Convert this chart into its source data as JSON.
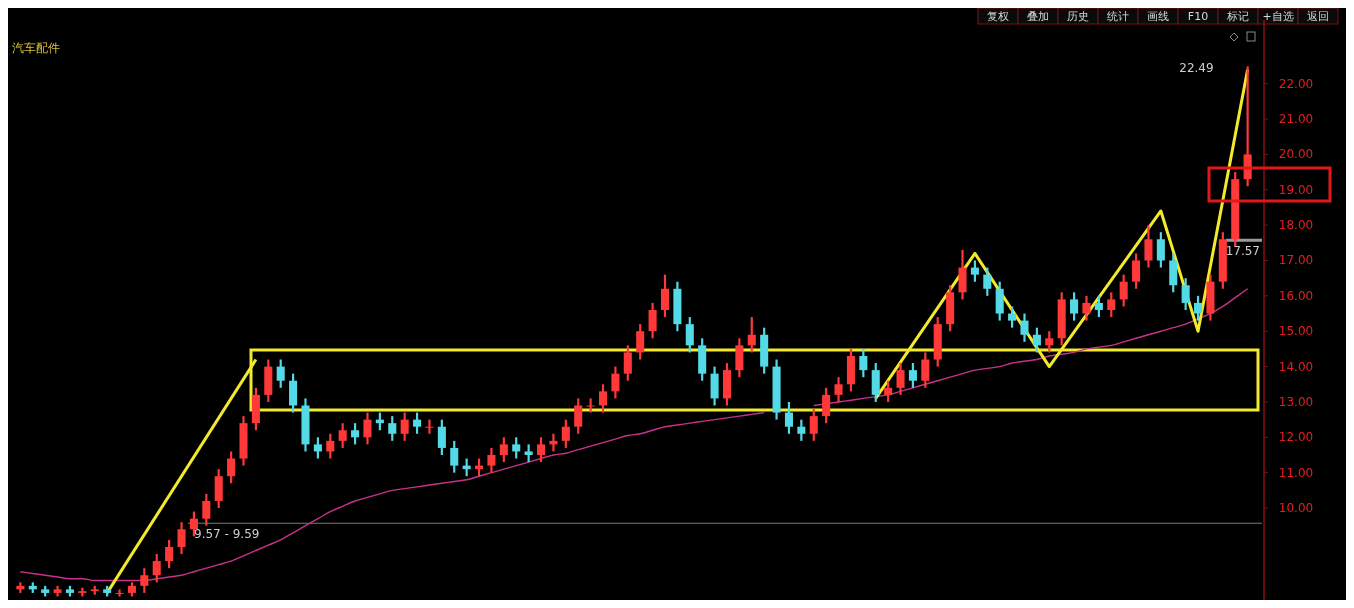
{
  "chart_data": {
    "type": "candlestick",
    "title": "汽车配件",
    "categories": [
      null,
      null,
      null,
      null,
      null,
      null,
      null,
      null,
      null,
      null,
      null,
      null,
      null,
      null,
      null,
      null,
      null,
      null,
      null,
      null,
      null,
      null,
      null,
      null,
      null,
      null,
      null,
      null,
      null,
      null,
      null,
      null,
      null,
      null,
      null,
      null,
      null,
      null,
      null,
      null,
      null,
      null,
      null,
      null,
      null,
      null,
      null,
      null,
      null,
      null,
      null,
      null,
      null,
      null,
      null,
      null,
      null,
      null,
      null,
      null,
      null,
      null,
      null,
      null,
      null,
      null,
      null,
      null,
      null,
      null,
      null,
      null,
      null,
      null,
      null,
      null,
      null,
      null,
      null,
      null,
      null,
      null,
      null,
      null,
      null,
      null,
      null,
      null,
      null,
      null,
      null,
      null,
      null,
      null,
      null,
      null,
      null,
      null,
      null,
      null
    ],
    "ohlc": [
      [
        7.7,
        7.9,
        7.6,
        7.8
      ],
      [
        7.8,
        7.9,
        7.6,
        7.7
      ],
      [
        7.7,
        7.8,
        7.5,
        7.6
      ],
      [
        7.6,
        7.8,
        7.5,
        7.7
      ],
      [
        7.7,
        7.8,
        7.5,
        7.6
      ],
      [
        7.6,
        7.75,
        7.5,
        7.65
      ],
      [
        7.65,
        7.8,
        7.55,
        7.7
      ],
      [
        7.7,
        7.8,
        7.5,
        7.6
      ],
      [
        7.6,
        7.7,
        7.5,
        7.6
      ],
      [
        7.6,
        7.9,
        7.5,
        7.8
      ],
      [
        7.8,
        8.3,
        7.6,
        8.1
      ],
      [
        8.1,
        8.7,
        7.9,
        8.5
      ],
      [
        8.5,
        9.1,
        8.3,
        8.9
      ],
      [
        8.9,
        9.6,
        8.7,
        9.4
      ],
      [
        9.4,
        9.9,
        9.2,
        9.7
      ],
      [
        9.7,
        10.4,
        9.5,
        10.2
      ],
      [
        10.2,
        11.1,
        10.0,
        10.9
      ],
      [
        10.9,
        11.6,
        10.7,
        11.4
      ],
      [
        11.4,
        12.6,
        11.2,
        12.4
      ],
      [
        12.4,
        13.4,
        12.2,
        13.2
      ],
      [
        13.2,
        14.2,
        13.0,
        14.0
      ],
      [
        14.0,
        14.2,
        13.4,
        13.6
      ],
      [
        13.6,
        13.8,
        12.7,
        12.9
      ],
      [
        12.9,
        13.1,
        11.6,
        11.8
      ],
      [
        11.8,
        12.0,
        11.4,
        11.6
      ],
      [
        11.6,
        12.1,
        11.4,
        11.9
      ],
      [
        11.9,
        12.4,
        11.7,
        12.2
      ],
      [
        12.2,
        12.4,
        11.8,
        12.0
      ],
      [
        12.0,
        12.7,
        11.8,
        12.5
      ],
      [
        12.5,
        12.7,
        12.2,
        12.4
      ],
      [
        12.4,
        12.6,
        11.9,
        12.1
      ],
      [
        12.1,
        12.7,
        11.9,
        12.5
      ],
      [
        12.5,
        12.7,
        12.1,
        12.3
      ],
      [
        12.3,
        12.5,
        12.1,
        12.3
      ],
      [
        12.3,
        12.5,
        11.5,
        11.7
      ],
      [
        11.7,
        11.9,
        11.0,
        11.2
      ],
      [
        11.2,
        11.4,
        10.9,
        11.1
      ],
      [
        11.1,
        11.4,
        10.9,
        11.2
      ],
      [
        11.2,
        11.7,
        11.0,
        11.5
      ],
      [
        11.5,
        12.0,
        11.3,
        11.8
      ],
      [
        11.8,
        12.0,
        11.4,
        11.6
      ],
      [
        11.6,
        11.8,
        11.3,
        11.5
      ],
      [
        11.5,
        12.0,
        11.3,
        11.8
      ],
      [
        11.8,
        12.1,
        11.6,
        11.9
      ],
      [
        11.9,
        12.5,
        11.7,
        12.3
      ],
      [
        12.3,
        13.1,
        12.1,
        12.9
      ],
      [
        12.9,
        13.1,
        12.7,
        12.9
      ],
      [
        12.9,
        13.5,
        12.7,
        13.3
      ],
      [
        13.3,
        14.0,
        13.1,
        13.8
      ],
      [
        13.8,
        14.6,
        13.6,
        14.4
      ],
      [
        14.4,
        15.2,
        14.2,
        15.0
      ],
      [
        15.0,
        15.8,
        14.8,
        15.6
      ],
      [
        15.6,
        16.6,
        15.4,
        16.2
      ],
      [
        16.2,
        16.4,
        15.0,
        15.2
      ],
      [
        15.2,
        15.4,
        14.4,
        14.6
      ],
      [
        14.6,
        14.8,
        13.6,
        13.8
      ],
      [
        13.8,
        14.0,
        12.9,
        13.1
      ],
      [
        13.1,
        14.1,
        12.9,
        13.9
      ],
      [
        13.9,
        14.8,
        13.7,
        14.6
      ],
      [
        14.6,
        15.4,
        14.4,
        14.9
      ],
      [
        14.9,
        15.1,
        13.8,
        14.0
      ],
      [
        14.0,
        14.2,
        12.5,
        12.7
      ],
      [
        12.7,
        13.0,
        12.1,
        12.3
      ],
      [
        12.3,
        12.5,
        11.9,
        12.1
      ],
      [
        12.1,
        12.8,
        11.9,
        12.6
      ],
      [
        12.6,
        13.4,
        12.4,
        13.2
      ],
      [
        13.2,
        13.7,
        13.0,
        13.5
      ],
      [
        13.5,
        14.5,
        13.3,
        14.3
      ],
      [
        14.3,
        14.5,
        13.7,
        13.9
      ],
      [
        13.9,
        14.1,
        13.0,
        13.2
      ],
      [
        13.2,
        13.6,
        13.0,
        13.4
      ],
      [
        13.4,
        14.1,
        13.2,
        13.9
      ],
      [
        13.9,
        14.1,
        13.4,
        13.6
      ],
      [
        13.6,
        14.4,
        13.4,
        14.2
      ],
      [
        14.2,
        15.4,
        14.0,
        15.2
      ],
      [
        15.2,
        16.3,
        15.0,
        16.1
      ],
      [
        16.1,
        17.3,
        15.9,
        16.8
      ],
      [
        16.8,
        17.0,
        16.4,
        16.6
      ],
      [
        16.6,
        16.8,
        16.0,
        16.2
      ],
      [
        16.2,
        16.4,
        15.3,
        15.5
      ],
      [
        15.5,
        15.7,
        15.1,
        15.3
      ],
      [
        15.3,
        15.5,
        14.7,
        14.9
      ],
      [
        14.9,
        15.1,
        14.4,
        14.6
      ],
      [
        14.6,
        15.0,
        14.4,
        14.8
      ],
      [
        14.8,
        16.1,
        14.6,
        15.9
      ],
      [
        15.9,
        16.1,
        15.3,
        15.5
      ],
      [
        15.5,
        16.0,
        15.3,
        15.8
      ],
      [
        15.8,
        16.0,
        15.4,
        15.6
      ],
      [
        15.6,
        16.1,
        15.4,
        15.9
      ],
      [
        15.9,
        16.6,
        15.7,
        16.4
      ],
      [
        16.4,
        17.2,
        16.2,
        17.0
      ],
      [
        17.0,
        18.0,
        16.8,
        17.6
      ],
      [
        17.6,
        17.8,
        16.8,
        17.0
      ],
      [
        17.0,
        17.2,
        16.1,
        16.3
      ],
      [
        16.3,
        16.5,
        15.6,
        15.8
      ],
      [
        15.8,
        16.0,
        15.3,
        15.5
      ],
      [
        15.5,
        16.6,
        15.3,
        16.4
      ],
      [
        16.4,
        17.8,
        16.2,
        17.6
      ],
      [
        17.6,
        19.5,
        17.4,
        19.3
      ],
      [
        19.3,
        22.49,
        19.1,
        20.0
      ]
    ],
    "series": [
      {
        "type": "line",
        "color": "#c8328c",
        "values": [
          8.2,
          8.15,
          8.1,
          8.05,
          8.0,
          8.0,
          7.95,
          7.95,
          7.95,
          7.95,
          7.95,
          8.0,
          8.05,
          8.1,
          8.2,
          8.3,
          8.4,
          8.5,
          8.65,
          8.8,
          8.95,
          9.1,
          9.3,
          9.5,
          9.7,
          9.9,
          10.05,
          10.2,
          10.3,
          10.4,
          10.5,
          10.55,
          10.6,
          10.65,
          10.7,
          10.75,
          10.8,
          10.9,
          11.0,
          11.1,
          11.2,
          11.3,
          11.4,
          11.5,
          11.55,
          11.65,
          11.75,
          11.85,
          11.95,
          12.05,
          12.1,
          12.2,
          12.3,
          12.35,
          12.4,
          12.45,
          12.5,
          12.55,
          12.6,
          12.65,
          12.7,
          null,
          null,
          null,
          12.9,
          12.95,
          13.0,
          13.05,
          13.1,
          13.15,
          13.2,
          13.3,
          13.4,
          13.5,
          13.6,
          13.7,
          13.8,
          13.9,
          13.95,
          14.0,
          14.1,
          14.15,
          14.2,
          14.3,
          14.35,
          14.4,
          14.5,
          14.55,
          14.6,
          14.7,
          14.8,
          14.9,
          15.0,
          15.1,
          15.2,
          15.35,
          15.5,
          15.7,
          15.95,
          16.2
        ]
      },
      {
        "type": "line",
        "color": "#f2ea2a",
        "values": [
          null,
          null,
          null,
          null,
          null,
          null,
          null,
          7.6,
          null,
          null,
          null,
          null,
          null,
          null,
          null,
          null,
          null,
          null,
          null,
          14.2,
          null,
          null,
          null,
          null,
          null,
          null,
          null,
          null,
          null,
          null,
          null,
          null,
          null,
          null,
          null,
          null,
          null,
          null,
          null,
          null,
          null,
          null,
          null,
          null,
          null,
          null,
          null,
          null,
          null,
          null,
          null,
          null,
          null,
          null,
          null,
          null,
          null,
          null,
          null,
          null,
          null,
          null,
          null,
          null,
          null,
          null,
          null,
          null,
          null,
          null,
          null,
          null,
          null,
          null,
          null,
          null,
          null,
          null,
          null,
          null,
          null,
          null,
          null,
          null,
          null,
          null,
          null,
          null,
          null,
          null,
          null,
          null,
          null,
          null,
          null,
          null,
          null,
          null,
          null,
          null
        ]
      },
      {
        "type": "line",
        "color": "#f2ea2a",
        "values": [
          null,
          null,
          null,
          null,
          null,
          null,
          null,
          null,
          null,
          null,
          null,
          null,
          null,
          null,
          null,
          null,
          null,
          null,
          null,
          null,
          null,
          null,
          null,
          null,
          null,
          null,
          null,
          null,
          null,
          null,
          null,
          null,
          null,
          null,
          null,
          null,
          null,
          null,
          null,
          null,
          null,
          null,
          null,
          null,
          null,
          null,
          null,
          null,
          null,
          null,
          null,
          null,
          null,
          null,
          null,
          null,
          null,
          null,
          null,
          null,
          null,
          null,
          null,
          null,
          null,
          null,
          null,
          null,
          null,
          13.1,
          null,
          null,
          null,
          null,
          null,
          null,
          null,
          17.2,
          null,
          null,
          null,
          null,
          null,
          14.0,
          null,
          null,
          null,
          null,
          null,
          null,
          null,
          null,
          18.4,
          null,
          null,
          15.0,
          null,
          null,
          null,
          22.4
        ]
      }
    ],
    "ylim": [
      7.4,
      23.8
    ],
    "yticks": [
      {
        "value": 10,
        "label": "10.00"
      },
      {
        "value": 11,
        "label": "11.00"
      },
      {
        "value": 12,
        "label": "12.00"
      },
      {
        "value": 13,
        "label": "13.00"
      },
      {
        "value": 14,
        "label": "14.00"
      },
      {
        "value": 15,
        "label": "15.00"
      },
      {
        "value": 16,
        "label": "16.00"
      },
      {
        "value": 17,
        "label": "17.00"
      },
      {
        "value": 18,
        "label": "18.00"
      },
      {
        "value": 19,
        "label": "19.00"
      },
      {
        "value": 20,
        "label": "20.00"
      },
      {
        "value": 21,
        "label": "21.00"
      },
      {
        "value": 22,
        "label": "22.00"
      }
    ],
    "ref_lines": [
      {
        "axis": "y",
        "value": 9.57,
        "label": "9.57 - 9.59",
        "color": "#7a7a7a"
      },
      {
        "axis": "y",
        "value": 17.57,
        "label": "17.57",
        "color": "#9a9a9a"
      }
    ],
    "annotations": [
      "22.49",
      "复权",
      "叠加",
      "历史",
      "统计",
      "画线",
      "F10",
      "标记",
      "+自选",
      "返回"
    ]
  }
}
